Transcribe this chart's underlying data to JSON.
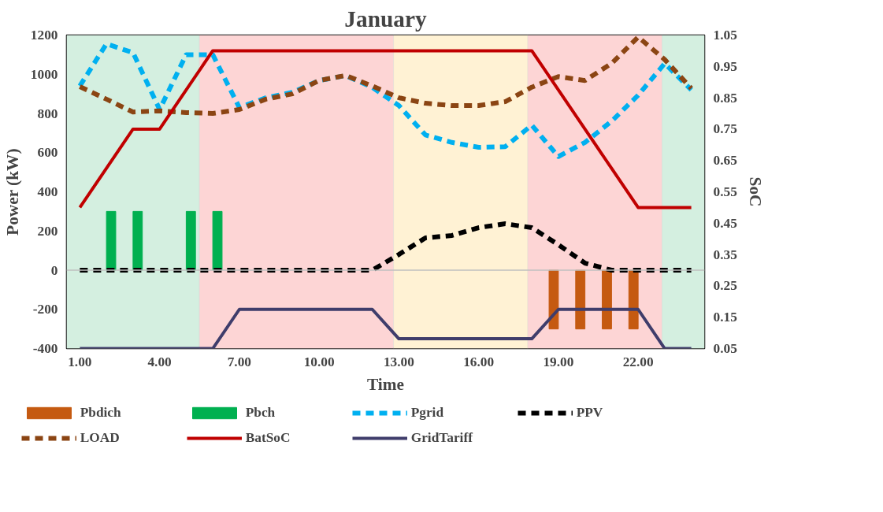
{
  "chart_data": {
    "type": "line",
    "title": "January",
    "xlabel": "Time",
    "ylabel": "Power (kW)",
    "y2label": "SoC",
    "x": [
      1,
      2,
      3,
      4,
      5,
      6,
      7,
      8,
      9,
      10,
      11,
      12,
      13,
      14,
      15,
      16,
      17,
      18,
      19,
      20,
      21,
      22,
      23,
      24
    ],
    "xlim": [
      0.5,
      24.5
    ],
    "xticks": [
      {
        "value": 1,
        "label": "1.00"
      },
      {
        "value": 4,
        "label": "4.00"
      },
      {
        "value": 7,
        "label": "7.00"
      },
      {
        "value": 10,
        "label": "10.00"
      },
      {
        "value": 13,
        "label": "13.00"
      },
      {
        "value": 16,
        "label": "16.00"
      },
      {
        "value": 19,
        "label": "19.00"
      },
      {
        "value": 22,
        "label": "22.00"
      }
    ],
    "ylim": [
      -400,
      1200
    ],
    "yticks": [
      -400,
      -200,
      0,
      200,
      400,
      600,
      800,
      1000,
      1200
    ],
    "y2lim": [
      0.05,
      1.05
    ],
    "y2ticks": [
      0.05,
      0.15,
      0.25,
      0.35,
      0.45,
      0.55,
      0.65,
      0.75,
      0.85,
      0.95,
      1.05
    ],
    "grid": false,
    "legend": "bottom",
    "bands": [
      {
        "axis": "x",
        "from": 0.5,
        "to": 5.5,
        "color": "#d4efe0"
      },
      {
        "axis": "x",
        "from": 5.5,
        "to": 12.8,
        "color": "#fdd5d5"
      },
      {
        "axis": "x",
        "from": 12.8,
        "to": 17.85,
        "color": "#fff2d4"
      },
      {
        "axis": "x",
        "from": 17.85,
        "to": 22.9,
        "color": "#fdd5d5"
      },
      {
        "axis": "x",
        "from": 22.9,
        "to": 24.5,
        "color": "#d4efe0"
      }
    ],
    "ref_lines": [
      {
        "axis": "y",
        "value": 0,
        "color": "#bfbfbf"
      }
    ],
    "series": [
      {
        "name": "Pbdich",
        "type": "bar",
        "color": "#c55a11",
        "values": [
          null,
          null,
          null,
          null,
          null,
          null,
          null,
          null,
          null,
          null,
          null,
          null,
          null,
          null,
          null,
          null,
          null,
          null,
          -300,
          -300,
          -300,
          -300,
          null,
          null
        ]
      },
      {
        "name": "Pbch",
        "type": "bar",
        "color": "#00b050",
        "values": [
          null,
          300,
          300,
          null,
          300,
          300,
          null,
          null,
          null,
          null,
          null,
          null,
          null,
          null,
          null,
          null,
          null,
          null,
          null,
          null,
          null,
          null,
          null,
          null
        ]
      },
      {
        "name": "Pgrid",
        "type": "line",
        "line_style": "dashed",
        "color": "#00b0f0",
        "values": [
          940,
          1155,
          1110,
          820,
          1100,
          1100,
          830,
          880,
          908,
          968,
          993,
          933,
          840,
          690,
          652,
          627,
          630,
          740,
          580,
          652,
          760,
          893,
          1055,
          920
        ]
      },
      {
        "name": "PPV",
        "type": "line",
        "line_style": "dashed",
        "color": "#000000",
        "values": [
          0,
          0,
          0,
          0,
          0,
          0,
          0,
          0,
          0,
          0,
          0,
          0,
          80,
          165,
          177,
          217,
          237,
          217,
          130,
          36,
          0,
          0,
          0,
          0
        ]
      },
      {
        "name": "LOAD",
        "type": "line",
        "line_style": "dashed",
        "color": "#8b4513",
        "values": [
          937,
          873,
          807,
          813,
          804,
          800,
          820,
          873,
          900,
          968,
          994,
          940,
          880,
          852,
          840,
          840,
          860,
          934,
          988,
          968,
          1055,
          1190,
          1075,
          928
        ]
      },
      {
        "name": "BatSoC",
        "type": "line",
        "axis": "y2",
        "color": "#c00000",
        "values": [
          0.5,
          0.625,
          0.75,
          0.75,
          0.875,
          1.0,
          1.0,
          1.0,
          1.0,
          1.0,
          1.0,
          1.0,
          1.0,
          1.0,
          1.0,
          1.0,
          1.0,
          1.0,
          0.875,
          0.75,
          0.625,
          0.5,
          0.5,
          0.5
        ]
      },
      {
        "name": "GridTariff",
        "type": "line",
        "color": "#3f3d6b",
        "values": [
          -400,
          -400,
          -400,
          -400,
          -400,
          -400,
          -200,
          -200,
          -200,
          -200,
          -200,
          -200,
          -350,
          -350,
          -350,
          -350,
          -350,
          -350,
          -200,
          -200,
          -200,
          -200,
          -400,
          -400
        ]
      }
    ]
  }
}
